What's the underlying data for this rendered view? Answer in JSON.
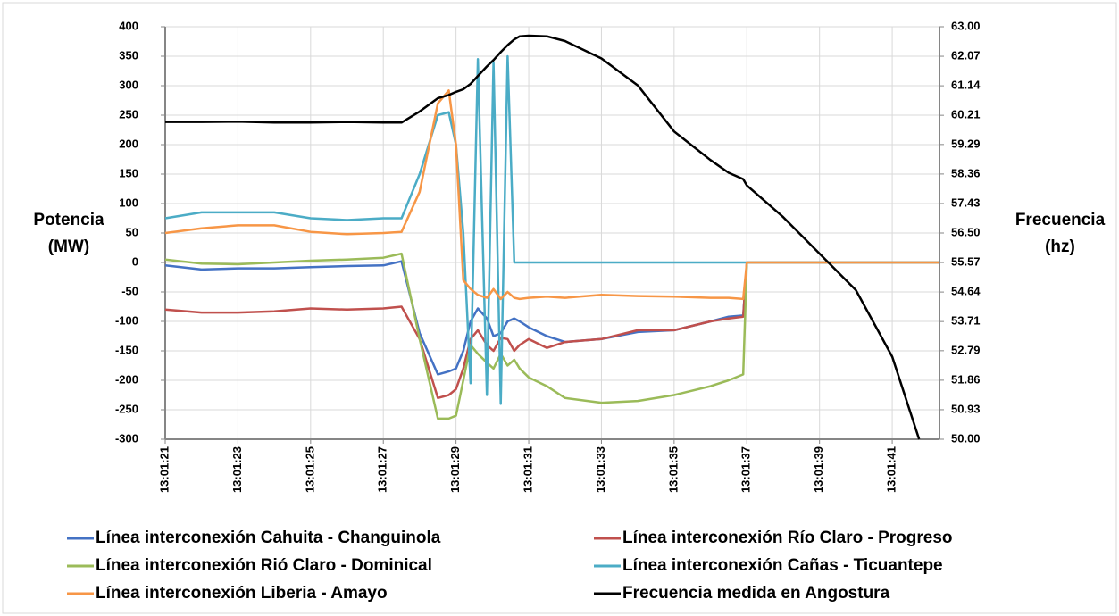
{
  "chart_data": {
    "type": "line",
    "y_label": "Potencia (MW)",
    "y2_label": "Frecuencia (hz)",
    "x": [
      "13:01:21",
      "13:01:22",
      "13:01:23",
      "13:01:24",
      "13:01:25",
      "13:01:26",
      "13:01:27",
      "13:01:27.5",
      "13:01:28",
      "13:01:28.5",
      "13:01:28.8",
      "13:01:29",
      "13:01:29.2",
      "13:01:29.4",
      "13:01:29.6",
      "13:01:29.85",
      "13:01:30.03",
      "13:01:30.23",
      "13:01:30.42",
      "13:01:30.6",
      "13:01:30.75",
      "13:01:31",
      "13:01:31.5",
      "13:01:32",
      "13:01:33",
      "13:01:34",
      "13:01:35",
      "13:01:36",
      "13:01:36.5",
      "13:01:36.9",
      "13:01:37",
      "13:01:38",
      "13:01:39",
      "13:01:40",
      "13:01:41",
      "13:01:41.74",
      "13:01:42.3"
    ],
    "series": [
      {
        "name": "Línea interconexión Cahuita - Changuinola",
        "color": "#4472c4",
        "values": [
          -5,
          -12,
          -10,
          -10,
          -8,
          -6,
          -5,
          2,
          -120,
          -190,
          -185,
          -180,
          -150,
          -100,
          -78,
          -95,
          -125,
          -120,
          -100,
          -95,
          -100,
          -110,
          -125,
          -135,
          -130,
          -118,
          -115,
          -100,
          -92,
          -90,
          0,
          0,
          0,
          0,
          0,
          0,
          0
        ]
      },
      {
        "name": "Línea interconexión Río Claro - Progreso",
        "color": "#c0504d",
        "values": [
          -80,
          -85,
          -85,
          -83,
          -78,
          -80,
          -78,
          -75,
          -130,
          -230,
          -225,
          -215,
          -180,
          -130,
          -115,
          -140,
          -150,
          -128,
          -130,
          -150,
          -140,
          -130,
          -145,
          -135,
          -130,
          -115,
          -115,
          -100,
          -95,
          -92,
          0,
          0,
          0,
          0,
          0,
          0,
          0
        ]
      },
      {
        "name": "Línea interconexión Rió Claro - Dominical",
        "color": "#9bbb59",
        "values": [
          5,
          -2,
          -3,
          0,
          3,
          5,
          8,
          15,
          -130,
          -265,
          -265,
          -260,
          -200,
          -140,
          -155,
          -170,
          -180,
          -155,
          -175,
          -165,
          -180,
          -195,
          -210,
          -230,
          -238,
          -235,
          -225,
          -210,
          -200,
          -190,
          0,
          0,
          0,
          0,
          0,
          0,
          0
        ]
      },
      {
        "name": "Línea interconexión Cañas - Ticuantepe",
        "color": "#4bacc6",
        "values": [
          75,
          85,
          85,
          85,
          75,
          72,
          75,
          75,
          150,
          250,
          255,
          200,
          50,
          -205,
          345,
          -225,
          340,
          -240,
          350,
          0,
          0,
          0,
          0,
          0,
          0,
          0,
          0,
          0,
          0,
          0,
          0,
          0,
          0,
          0,
          0,
          0,
          0
        ]
      },
      {
        "name": "Línea interconexión Liberia - Amayo",
        "color": "#f79646",
        "values": [
          50,
          58,
          63,
          63,
          52,
          48,
          50,
          52,
          120,
          270,
          292,
          200,
          -30,
          -45,
          -55,
          -60,
          -45,
          -62,
          -50,
          -60,
          -62,
          -60,
          -58,
          -60,
          -55,
          -57,
          -58,
          -60,
          -60,
          -62,
          0,
          0,
          0,
          0,
          0,
          0,
          0
        ]
      },
      {
        "name": "Frecuencia medida en Angostura",
        "color": "#000000",
        "axis": "y2",
        "values": [
          60.0,
          60.0,
          60.01,
          59.98,
          59.98,
          60.0,
          59.98,
          59.98,
          60.33,
          60.75,
          60.85,
          60.95,
          61.03,
          61.2,
          61.45,
          61.75,
          61.95,
          62.2,
          62.42,
          62.6,
          62.7,
          62.72,
          62.7,
          62.55,
          62.0,
          61.15,
          59.7,
          58.8,
          58.4,
          58.2,
          58.0,
          57.0,
          55.85,
          54.7,
          52.6,
          50.0,
          null
        ]
      }
    ],
    "xlim": [
      "13:01:21",
      "13:01:42.3"
    ],
    "xticks": [
      "13:01:21",
      "13:01:23",
      "13:01:25",
      "13:01:27",
      "13:01:29",
      "13:01:31",
      "13:01:33",
      "13:01:35",
      "13:01:37",
      "13:01:39",
      "13:01:41"
    ],
    "ylim": [
      -300,
      400
    ],
    "yticks": [
      -300,
      -250,
      -200,
      -150,
      -100,
      -50,
      0,
      50,
      100,
      150,
      200,
      250,
      300,
      350,
      400
    ],
    "y2lim": [
      50,
      63
    ],
    "y2ticks": [
      {
        "value": 50,
        "label": "50.00"
      },
      {
        "value": 50.93,
        "label": "50.93"
      },
      {
        "value": 51.86,
        "label": "51.86"
      },
      {
        "value": 52.79,
        "label": "52.79"
      },
      {
        "value": 53.71,
        "label": "53.71"
      },
      {
        "value": 54.64,
        "label": "54.64"
      },
      {
        "value": 55.57,
        "label": "55.57"
      },
      {
        "value": 56.5,
        "label": "56.50"
      },
      {
        "value": 57.43,
        "label": "57.43"
      },
      {
        "value": 58.36,
        "label": "58.36"
      },
      {
        "value": 59.29,
        "label": "59.29"
      },
      {
        "value": 60.21,
        "label": "60.21"
      },
      {
        "value": 61.14,
        "label": "61.14"
      },
      {
        "value": 62.07,
        "label": "62.07"
      },
      {
        "value": 63,
        "label": "63.00"
      }
    ],
    "grid": true,
    "legend": "bottom"
  }
}
